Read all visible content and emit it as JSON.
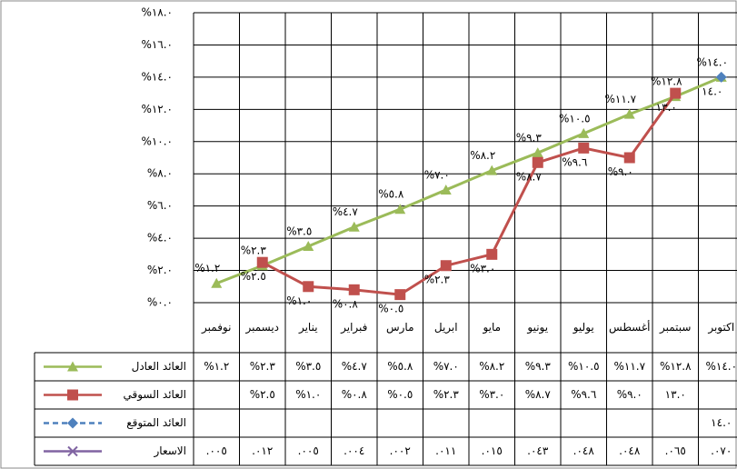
{
  "chart_data": {
    "type": "line",
    "categories": [
      "نوفمبر",
      "ديسمبر",
      "يناير",
      "فبراير",
      "مارس",
      "ابريل",
      "مايو",
      "يونيو",
      "يوليو",
      "أغسطس",
      "سبتمبر",
      "اكتوبر"
    ],
    "ylim": [
      0,
      18
    ],
    "yticks": [
      {
        "value": 0,
        "label": "%٠.٠"
      },
      {
        "value": 2,
        "label": "%٢.٠"
      },
      {
        "value": 4,
        "label": "%٤.٠"
      },
      {
        "value": 6,
        "label": "%٦.٠"
      },
      {
        "value": 8,
        "label": "%٨.٠"
      },
      {
        "value": 10,
        "label": "%١٠.٠"
      },
      {
        "value": 12,
        "label": "%١٢.٠"
      },
      {
        "value": 14,
        "label": "%١٤.٠"
      },
      {
        "value": 16,
        "label": "%١٦.٠"
      },
      {
        "value": 18,
        "label": "%١٨.٠"
      }
    ],
    "grid": true,
    "series": [
      {
        "name": "العائد العادل",
        "color": "#9bbb59",
        "marker": "triangle",
        "values": [
          1.2,
          2.3,
          3.5,
          4.7,
          5.8,
          7.0,
          8.2,
          9.3,
          10.5,
          11.7,
          12.8,
          14.0
        ],
        "value_labels": [
          "%١.٢",
          "%٢.٣",
          "%٣.٥",
          "%٤.٧",
          "%٥.٨",
          "%٧.٠",
          "%٨.٢",
          "%٩.٣",
          "%١٠.٥",
          "%١١.٧",
          "%١٢.٨",
          "%١٤.٠"
        ]
      },
      {
        "name": "العائد السوقي",
        "color": "#c0504d",
        "marker": "square",
        "values": [
          null,
          2.5,
          1.0,
          0.8,
          0.5,
          2.3,
          3.0,
          8.7,
          9.6,
          9.0,
          13.0,
          null
        ],
        "value_labels": [
          null,
          "%٢.٥",
          "%١.٠",
          "%٠.٨",
          "%٠.٥",
          "%٢.٣",
          "%٣.٠",
          "%٨.٧",
          "%٩.٦",
          "%٩.٠",
          "١٣.٠",
          null
        ]
      },
      {
        "name": "العائد المتوقع",
        "color": "#4f81bd",
        "marker": "diamond",
        "dashed": true,
        "values": [
          null,
          null,
          null,
          null,
          null,
          null,
          null,
          null,
          null,
          null,
          null,
          14.0
        ],
        "value_labels": [
          null,
          null,
          null,
          null,
          null,
          null,
          null,
          null,
          null,
          null,
          null,
          "١٤.٠"
        ]
      },
      {
        "name": "الاسعار",
        "color": "#8064a2",
        "marker": "x",
        "table_only": true,
        "values": [
          0.005,
          0.012,
          0.005,
          0.004,
          0.002,
          0.011,
          0.015,
          0.043,
          0.048,
          0.048,
          0.065,
          0.07
        ],
        "value_labels": [
          ".٠٠٥",
          ".٠١٢",
          ".٠٠٥",
          ".٠٠٤",
          ".٠٠٢",
          ".٠١١",
          ".٠١٥",
          ".٠٤٣",
          ".٠٤٨",
          ".٠٤٨",
          ".٠٦٥",
          ".٠٧٠"
        ]
      }
    ]
  }
}
